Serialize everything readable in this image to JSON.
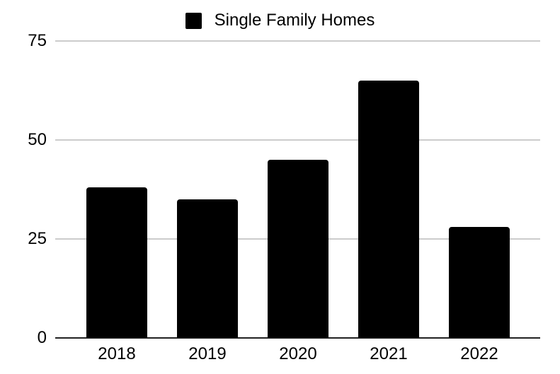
{
  "chart_data": {
    "type": "bar",
    "title": "",
    "categories": [
      "2018",
      "2019",
      "2020",
      "2021",
      "2022"
    ],
    "series": [
      {
        "name": "Single Family Homes",
        "color": "#000000",
        "values": [
          38,
          35,
          45,
          65,
          28
        ]
      }
    ],
    "xlabel": "",
    "ylabel": "",
    "ylim": [
      0,
      75
    ],
    "yticks": [
      0,
      25,
      50,
      75
    ],
    "grid": true,
    "legend_position": "top",
    "gridline_color": "#cccccc",
    "axis_line_color": "#222222",
    "label_color": "#000000",
    "background_color": "#ffffff"
  }
}
